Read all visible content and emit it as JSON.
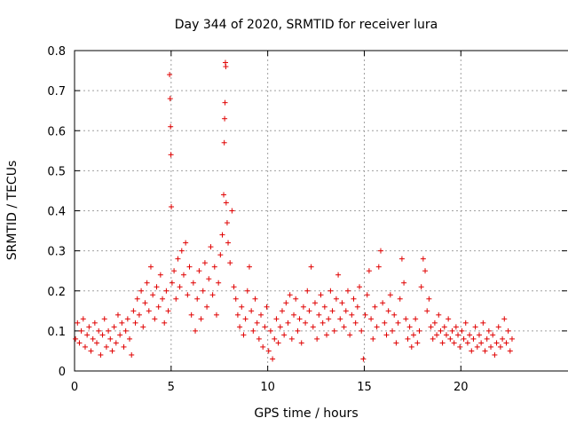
{
  "chart_data": {
    "type": "scatter",
    "title": "Day 344 of 2020, SRMTID for receiver lura",
    "xlabel": "GPS time / hours",
    "ylabel": "SRMTID / TECUs",
    "xlim": [
      0,
      25.5
    ],
    "ylim": [
      0,
      0.8
    ],
    "xticks": [
      0,
      5,
      10,
      15,
      20
    ],
    "xtick_labels": [
      "0",
      "5",
      "10",
      "15",
      "20"
    ],
    "yticks": [
      0,
      0.1,
      0.2,
      0.3,
      0.4,
      0.5,
      0.6,
      0.7,
      0.8
    ],
    "ytick_labels": [
      "0",
      "0.1",
      "0.2",
      "0.3",
      "0.4",
      "0.5",
      "0.6",
      "0.7",
      "0.8"
    ],
    "grid": true,
    "marker": "+",
    "series": [
      {
        "name": "SRMTID",
        "color": "#e00000",
        "points": [
          [
            0.05,
            0.08
          ],
          [
            0.15,
            0.12
          ],
          [
            0.25,
            0.07
          ],
          [
            0.35,
            0.1
          ],
          [
            0.45,
            0.13
          ],
          [
            0.55,
            0.06
          ],
          [
            0.65,
            0.09
          ],
          [
            0.75,
            0.11
          ],
          [
            0.85,
            0.05
          ],
          [
            0.95,
            0.08
          ],
          [
            1.05,
            0.12
          ],
          [
            1.15,
            0.07
          ],
          [
            1.25,
            0.1
          ],
          [
            1.35,
            0.04
          ],
          [
            1.45,
            0.09
          ],
          [
            1.55,
            0.13
          ],
          [
            1.65,
            0.06
          ],
          [
            1.75,
            0.1
          ],
          [
            1.85,
            0.08
          ],
          [
            1.95,
            0.05
          ],
          [
            2.05,
            0.11
          ],
          [
            2.15,
            0.07
          ],
          [
            2.25,
            0.14
          ],
          [
            2.35,
            0.09
          ],
          [
            2.45,
            0.12
          ],
          [
            2.55,
            0.06
          ],
          [
            2.65,
            0.1
          ],
          [
            2.75,
            0.13
          ],
          [
            2.85,
            0.08
          ],
          [
            2.95,
            0.04
          ],
          [
            3.05,
            0.15
          ],
          [
            3.15,
            0.12
          ],
          [
            3.25,
            0.18
          ],
          [
            3.35,
            0.14
          ],
          [
            3.45,
            0.2
          ],
          [
            3.55,
            0.11
          ],
          [
            3.65,
            0.17
          ],
          [
            3.75,
            0.22
          ],
          [
            3.85,
            0.15
          ],
          [
            3.95,
            0.26
          ],
          [
            4.05,
            0.19
          ],
          [
            4.15,
            0.13
          ],
          [
            4.25,
            0.21
          ],
          [
            4.35,
            0.16
          ],
          [
            4.45,
            0.24
          ],
          [
            4.55,
            0.18
          ],
          [
            4.65,
            0.12
          ],
          [
            4.75,
            0.2
          ],
          [
            4.85,
            0.15
          ],
          [
            4.92,
            0.74
          ],
          [
            4.95,
            0.68
          ],
          [
            4.97,
            0.61
          ],
          [
            4.99,
            0.54
          ],
          [
            5.01,
            0.41
          ],
          [
            5.05,
            0.22
          ],
          [
            5.15,
            0.25
          ],
          [
            5.25,
            0.18
          ],
          [
            5.35,
            0.28
          ],
          [
            5.45,
            0.21
          ],
          [
            5.55,
            0.3
          ],
          [
            5.65,
            0.24
          ],
          [
            5.75,
            0.32
          ],
          [
            5.85,
            0.19
          ],
          [
            5.95,
            0.26
          ],
          [
            6.05,
            0.14
          ],
          [
            6.15,
            0.22
          ],
          [
            6.25,
            0.1
          ],
          [
            6.35,
            0.18
          ],
          [
            6.45,
            0.25
          ],
          [
            6.55,
            0.13
          ],
          [
            6.65,
            0.2
          ],
          [
            6.75,
            0.27
          ],
          [
            6.85,
            0.16
          ],
          [
            6.95,
            0.23
          ],
          [
            7.05,
            0.31
          ],
          [
            7.15,
            0.19
          ],
          [
            7.25,
            0.26
          ],
          [
            7.35,
            0.14
          ],
          [
            7.45,
            0.22
          ],
          [
            7.55,
            0.29
          ],
          [
            7.65,
            0.34
          ],
          [
            7.72,
            0.44
          ],
          [
            7.75,
            0.57
          ],
          [
            7.77,
            0.63
          ],
          [
            7.79,
            0.67
          ],
          [
            7.81,
            0.77
          ],
          [
            7.83,
            0.76
          ],
          [
            7.85,
            0.42
          ],
          [
            7.9,
            0.37
          ],
          [
            7.95,
            0.32
          ],
          [
            8.05,
            0.27
          ],
          [
            8.15,
            0.4
          ],
          [
            8.25,
            0.21
          ],
          [
            8.35,
            0.18
          ],
          [
            8.45,
            0.14
          ],
          [
            8.55,
            0.11
          ],
          [
            8.65,
            0.16
          ],
          [
            8.75,
            0.09
          ],
          [
            8.85,
            0.13
          ],
          [
            8.95,
            0.2
          ],
          [
            9.05,
            0.26
          ],
          [
            9.15,
            0.15
          ],
          [
            9.25,
            0.1
          ],
          [
            9.35,
            0.18
          ],
          [
            9.45,
            0.12
          ],
          [
            9.55,
            0.08
          ],
          [
            9.65,
            0.14
          ],
          [
            9.75,
            0.06
          ],
          [
            9.85,
            0.11
          ],
          [
            9.95,
            0.16
          ],
          [
            10.05,
            0.05
          ],
          [
            10.15,
            0.1
          ],
          [
            10.25,
            0.03
          ],
          [
            10.35,
            0.08
          ],
          [
            10.45,
            0.13
          ],
          [
            10.55,
            0.07
          ],
          [
            10.65,
            0.11
          ],
          [
            10.75,
            0.15
          ],
          [
            10.85,
            0.09
          ],
          [
            10.95,
            0.17
          ],
          [
            11.05,
            0.12
          ],
          [
            11.15,
            0.19
          ],
          [
            11.25,
            0.08
          ],
          [
            11.35,
            0.14
          ],
          [
            11.45,
            0.18
          ],
          [
            11.55,
            0.1
          ],
          [
            11.65,
            0.13
          ],
          [
            11.75,
            0.07
          ],
          [
            11.85,
            0.16
          ],
          [
            11.95,
            0.12
          ],
          [
            12.05,
            0.2
          ],
          [
            12.15,
            0.15
          ],
          [
            12.25,
            0.26
          ],
          [
            12.35,
            0.11
          ],
          [
            12.45,
            0.17
          ],
          [
            12.55,
            0.08
          ],
          [
            12.65,
            0.14
          ],
          [
            12.75,
            0.19
          ],
          [
            12.85,
            0.12
          ],
          [
            12.95,
            0.16
          ],
          [
            13.05,
            0.09
          ],
          [
            13.15,
            0.13
          ],
          [
            13.25,
            0.2
          ],
          [
            13.35,
            0.15
          ],
          [
            13.45,
            0.1
          ],
          [
            13.55,
            0.18
          ],
          [
            13.65,
            0.24
          ],
          [
            13.75,
            0.13
          ],
          [
            13.85,
            0.17
          ],
          [
            13.95,
            0.11
          ],
          [
            14.05,
            0.15
          ],
          [
            14.15,
            0.2
          ],
          [
            14.25,
            0.09
          ],
          [
            14.35,
            0.14
          ],
          [
            14.45,
            0.18
          ],
          [
            14.55,
            0.12
          ],
          [
            14.65,
            0.16
          ],
          [
            14.75,
            0.21
          ],
          [
            14.85,
            0.1
          ],
          [
            14.95,
            0.03
          ],
          [
            15.05,
            0.14
          ],
          [
            15.15,
            0.19
          ],
          [
            15.25,
            0.25
          ],
          [
            15.35,
            0.13
          ],
          [
            15.45,
            0.08
          ],
          [
            15.55,
            0.16
          ],
          [
            15.65,
            0.11
          ],
          [
            15.75,
            0.26
          ],
          [
            15.85,
            0.3
          ],
          [
            15.95,
            0.17
          ],
          [
            16.05,
            0.12
          ],
          [
            16.15,
            0.09
          ],
          [
            16.25,
            0.15
          ],
          [
            16.35,
            0.19
          ],
          [
            16.45,
            0.1
          ],
          [
            16.55,
            0.14
          ],
          [
            16.65,
            0.07
          ],
          [
            16.75,
            0.12
          ],
          [
            16.85,
            0.18
          ],
          [
            16.95,
            0.28
          ],
          [
            17.05,
            0.22
          ],
          [
            17.15,
            0.13
          ],
          [
            17.25,
            0.08
          ],
          [
            17.35,
            0.11
          ],
          [
            17.45,
            0.06
          ],
          [
            17.55,
            0.09
          ],
          [
            17.65,
            0.13
          ],
          [
            17.75,
            0.07
          ],
          [
            17.85,
            0.1
          ],
          [
            17.95,
            0.21
          ],
          [
            18.05,
            0.28
          ],
          [
            18.15,
            0.25
          ],
          [
            18.25,
            0.15
          ],
          [
            18.35,
            0.18
          ],
          [
            18.45,
            0.11
          ],
          [
            18.55,
            0.08
          ],
          [
            18.65,
            0.12
          ],
          [
            18.75,
            0.09
          ],
          [
            18.85,
            0.14
          ],
          [
            18.95,
            0.1
          ],
          [
            19.05,
            0.07
          ],
          [
            19.15,
            0.11
          ],
          [
            19.25,
            0.09
          ],
          [
            19.35,
            0.13
          ],
          [
            19.45,
            0.08
          ],
          [
            19.55,
            0.1
          ],
          [
            19.65,
            0.07
          ],
          [
            19.75,
            0.11
          ],
          [
            19.85,
            0.09
          ],
          [
            19.95,
            0.06
          ],
          [
            20.05,
            0.1
          ],
          [
            20.15,
            0.08
          ],
          [
            20.25,
            0.12
          ],
          [
            20.35,
            0.07
          ],
          [
            20.45,
            0.09
          ],
          [
            20.55,
            0.05
          ],
          [
            20.65,
            0.08
          ],
          [
            20.75,
            0.11
          ],
          [
            20.85,
            0.06
          ],
          [
            20.95,
            0.09
          ],
          [
            21.05,
            0.07
          ],
          [
            21.15,
            0.12
          ],
          [
            21.25,
            0.05
          ],
          [
            21.35,
            0.08
          ],
          [
            21.45,
            0.1
          ],
          [
            21.55,
            0.06
          ],
          [
            21.65,
            0.09
          ],
          [
            21.75,
            0.04
          ],
          [
            21.85,
            0.07
          ],
          [
            21.95,
            0.11
          ],
          [
            22.05,
            0.06
          ],
          [
            22.15,
            0.08
          ],
          [
            22.25,
            0.13
          ],
          [
            22.35,
            0.07
          ],
          [
            22.45,
            0.1
          ],
          [
            22.55,
            0.05
          ],
          [
            22.65,
            0.08
          ]
        ]
      }
    ]
  }
}
